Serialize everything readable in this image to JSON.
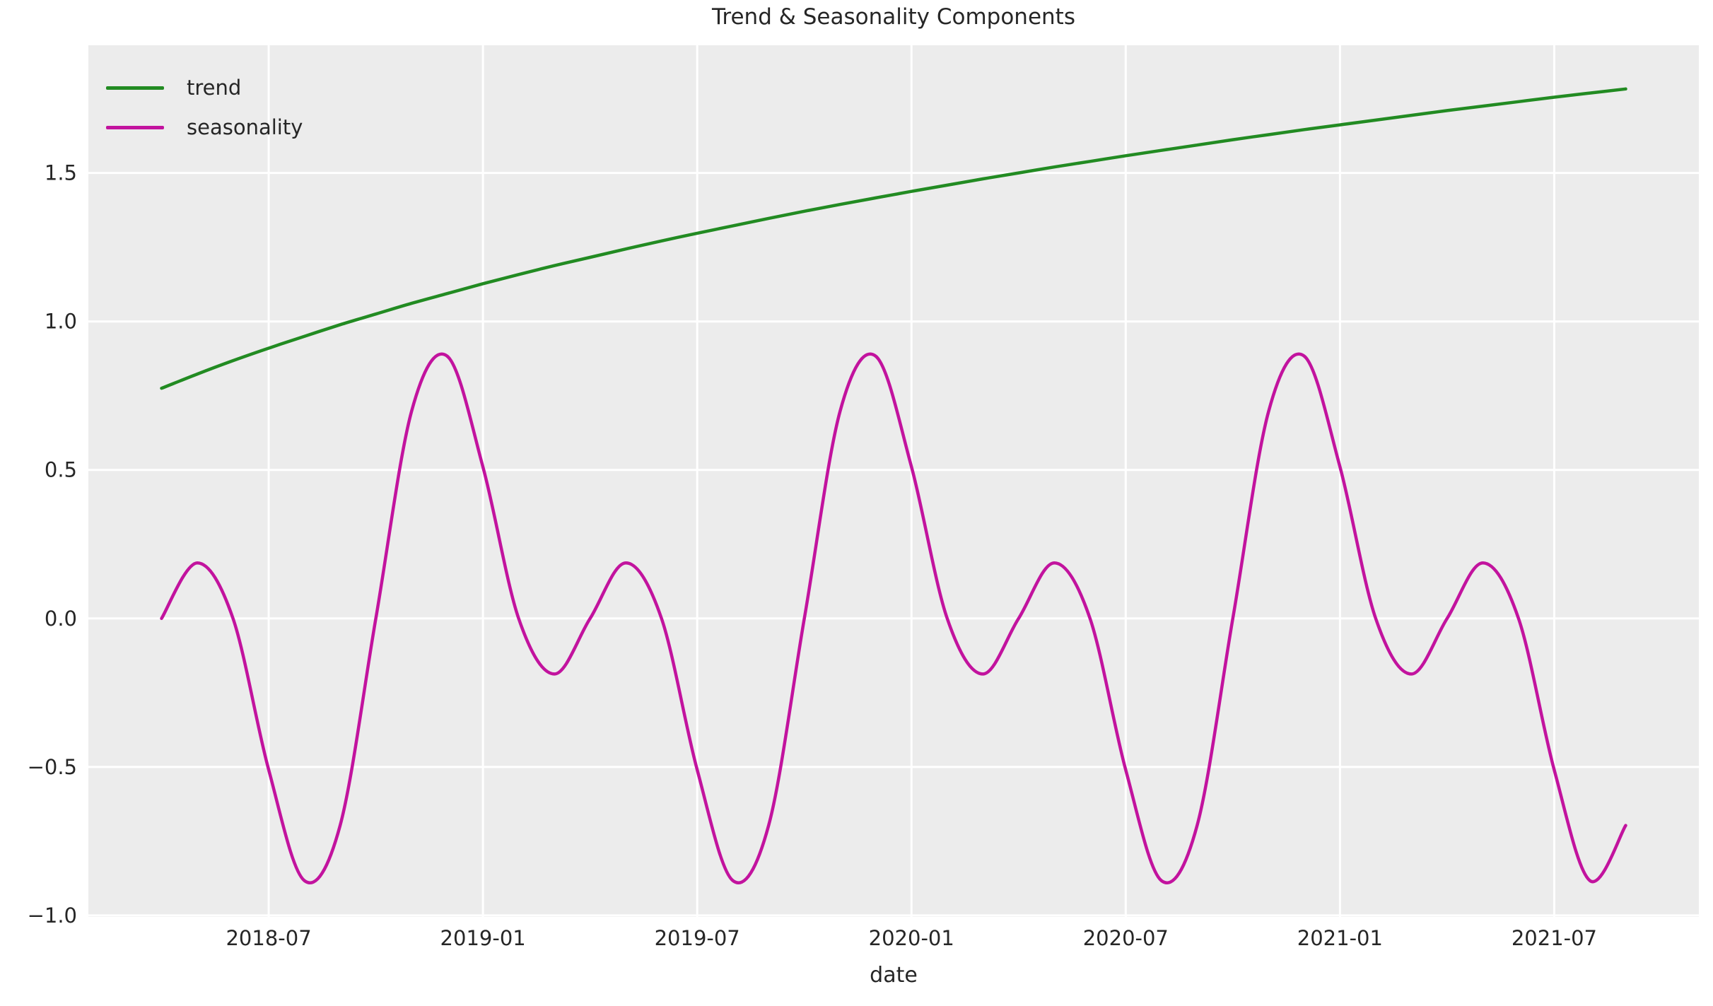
{
  "figure": {
    "background": "#ffffff",
    "plot_background": "#ECECEC",
    "grid_color": "#ffffff",
    "text_color": "#262626"
  },
  "chart_data": {
    "type": "line",
    "title": "Trend & Seasonality Components",
    "xlabel": "date",
    "ylabel": "",
    "grid": true,
    "legend_position": "upper left",
    "x": [
      "2018-04",
      "2018-05",
      "2018-06",
      "2018-07",
      "2018-08",
      "2018-09",
      "2018-10",
      "2018-11",
      "2018-12",
      "2019-01",
      "2019-02",
      "2019-03",
      "2019-04",
      "2019-05",
      "2019-06",
      "2019-07",
      "2019-08",
      "2019-09",
      "2019-10",
      "2019-11",
      "2019-12",
      "2020-01",
      "2020-02",
      "2020-03",
      "2020-04",
      "2020-05",
      "2020-06",
      "2020-07",
      "2020-08",
      "2020-09",
      "2020-10",
      "2020-11",
      "2020-12",
      "2021-01",
      "2021-02",
      "2021-03",
      "2021-04",
      "2021-05",
      "2021-06",
      "2021-07",
      "2021-08",
      "2021-09"
    ],
    "series": [
      {
        "name": "trend",
        "color": "#228B22",
        "values": [
          0.775,
          0.823,
          0.868,
          0.91,
          0.95,
          0.989,
          1.025,
          1.061,
          1.094,
          1.127,
          1.158,
          1.188,
          1.216,
          1.244,
          1.271,
          1.297,
          1.322,
          1.347,
          1.371,
          1.394,
          1.416,
          1.438,
          1.459,
          1.48,
          1.5,
          1.52,
          1.539,
          1.558,
          1.576,
          1.594,
          1.612,
          1.629,
          1.646,
          1.662,
          1.678,
          1.694,
          1.71,
          1.725,
          1.74,
          1.755,
          1.769,
          1.783
        ]
      },
      {
        "name": "seasonality",
        "color": "#C2139E",
        "values": [
          0.0,
          0.187,
          0.0,
          -0.51,
          -0.883,
          -0.697,
          0.0,
          0.697,
          0.883,
          0.51,
          0.0,
          -0.187,
          0.0,
          0.187,
          0.0,
          -0.51,
          -0.883,
          -0.697,
          0.0,
          0.697,
          0.883,
          0.51,
          0.0,
          -0.187,
          0.0,
          0.187,
          0.0,
          -0.51,
          -0.883,
          -0.697,
          0.0,
          0.697,
          0.883,
          0.51,
          0.0,
          -0.187,
          0.0,
          0.187,
          0.0,
          -0.51,
          -0.883,
          -0.697
        ]
      }
    ],
    "xtick_labels": [
      "2018-07",
      "2019-01",
      "2019-07",
      "2020-01",
      "2020-07",
      "2021-01",
      "2021-07"
    ],
    "xtick_index": [
      3,
      9,
      15,
      21,
      27,
      33,
      39
    ],
    "yticks": [
      -1.0,
      -0.5,
      0.0,
      0.5,
      1.0,
      1.5
    ],
    "ytick_labels": [
      "−1.0",
      "−0.5",
      "0.0",
      "0.5",
      "1.0",
      "1.5"
    ],
    "ylim": [
      -1.005,
      1.93
    ],
    "xlim_months": [
      -2.05,
      43.05
    ]
  }
}
